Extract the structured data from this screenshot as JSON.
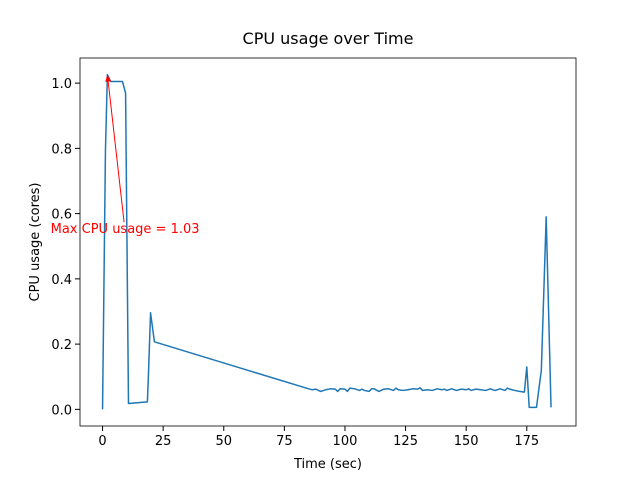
{
  "chart_data": {
    "type": "line",
    "title": "CPU usage over Time",
    "x_label": "Time (sec)",
    "y_label": "CPU usage (cores)",
    "xlim": [
      -9.3,
      195.3
    ],
    "ylim": [
      -0.051,
      1.077
    ],
    "xticks": [
      0,
      25,
      50,
      75,
      100,
      125,
      150,
      175
    ],
    "yticks": [
      {
        "value": 0,
        "label": "0.0"
      },
      {
        "value": 0.2,
        "label": "0.2"
      },
      {
        "value": 0.4,
        "label": "0.4"
      },
      {
        "value": 0.6,
        "label": "0.6"
      },
      {
        "value": 0.8,
        "label": "0.8"
      },
      {
        "value": 1.0,
        "label": "1.0"
      }
    ],
    "series": [
      {
        "color": "#1f77b4",
        "x": [
          0,
          1.2,
          2,
          3.3,
          8.2,
          9.5,
          10.7,
          18.5,
          19,
          19.8,
          21.4,
          85,
          86.5,
          88,
          90,
          92,
          94,
          96,
          97,
          98,
          100,
          101,
          102,
          104,
          106,
          107,
          108,
          110,
          111,
          112,
          114,
          116,
          118,
          120,
          121,
          122,
          124,
          126,
          128,
          130,
          131,
          132,
          134,
          136,
          138,
          140,
          141,
          142,
          144,
          146,
          148,
          150,
          151,
          152,
          154,
          156,
          158,
          160,
          161,
          162,
          164,
          166,
          167,
          168,
          170,
          172,
          174,
          175,
          176,
          177,
          179,
          181,
          183,
          185
        ],
        "values": [
          0,
          0.795,
          1.026,
          1.005,
          1.005,
          0.97,
          0.018,
          0.023,
          0.12,
          0.296,
          0.207,
          0.063,
          0.06,
          0.062,
          0.055,
          0.06,
          0.063,
          0.062,
          0.055,
          0.063,
          0.062,
          0.055,
          0.065,
          0.063,
          0.058,
          0.062,
          0.058,
          0.055,
          0.063,
          0.063,
          0.055,
          0.062,
          0.063,
          0.058,
          0.065,
          0.06,
          0.058,
          0.06,
          0.063,
          0.062,
          0.066,
          0.058,
          0.06,
          0.058,
          0.063,
          0.06,
          0.062,
          0.058,
          0.063,
          0.058,
          0.062,
          0.06,
          0.063,
          0.058,
          0.062,
          0.06,
          0.058,
          0.063,
          0.06,
          0.058,
          0.063,
          0.058,
          0.065,
          0.062,
          0.058,
          0.055,
          0.053,
          0.13,
          0.006,
          0.006,
          0.006,
          0.12,
          0.59,
          0.006
        ]
      }
    ],
    "annotation": {
      "text": "Max CPU usage = 1.03",
      "color": "#ff0000",
      "xy": [
        2,
        1.026
      ],
      "xytext": [
        9.3,
        0.54
      ]
    }
  }
}
